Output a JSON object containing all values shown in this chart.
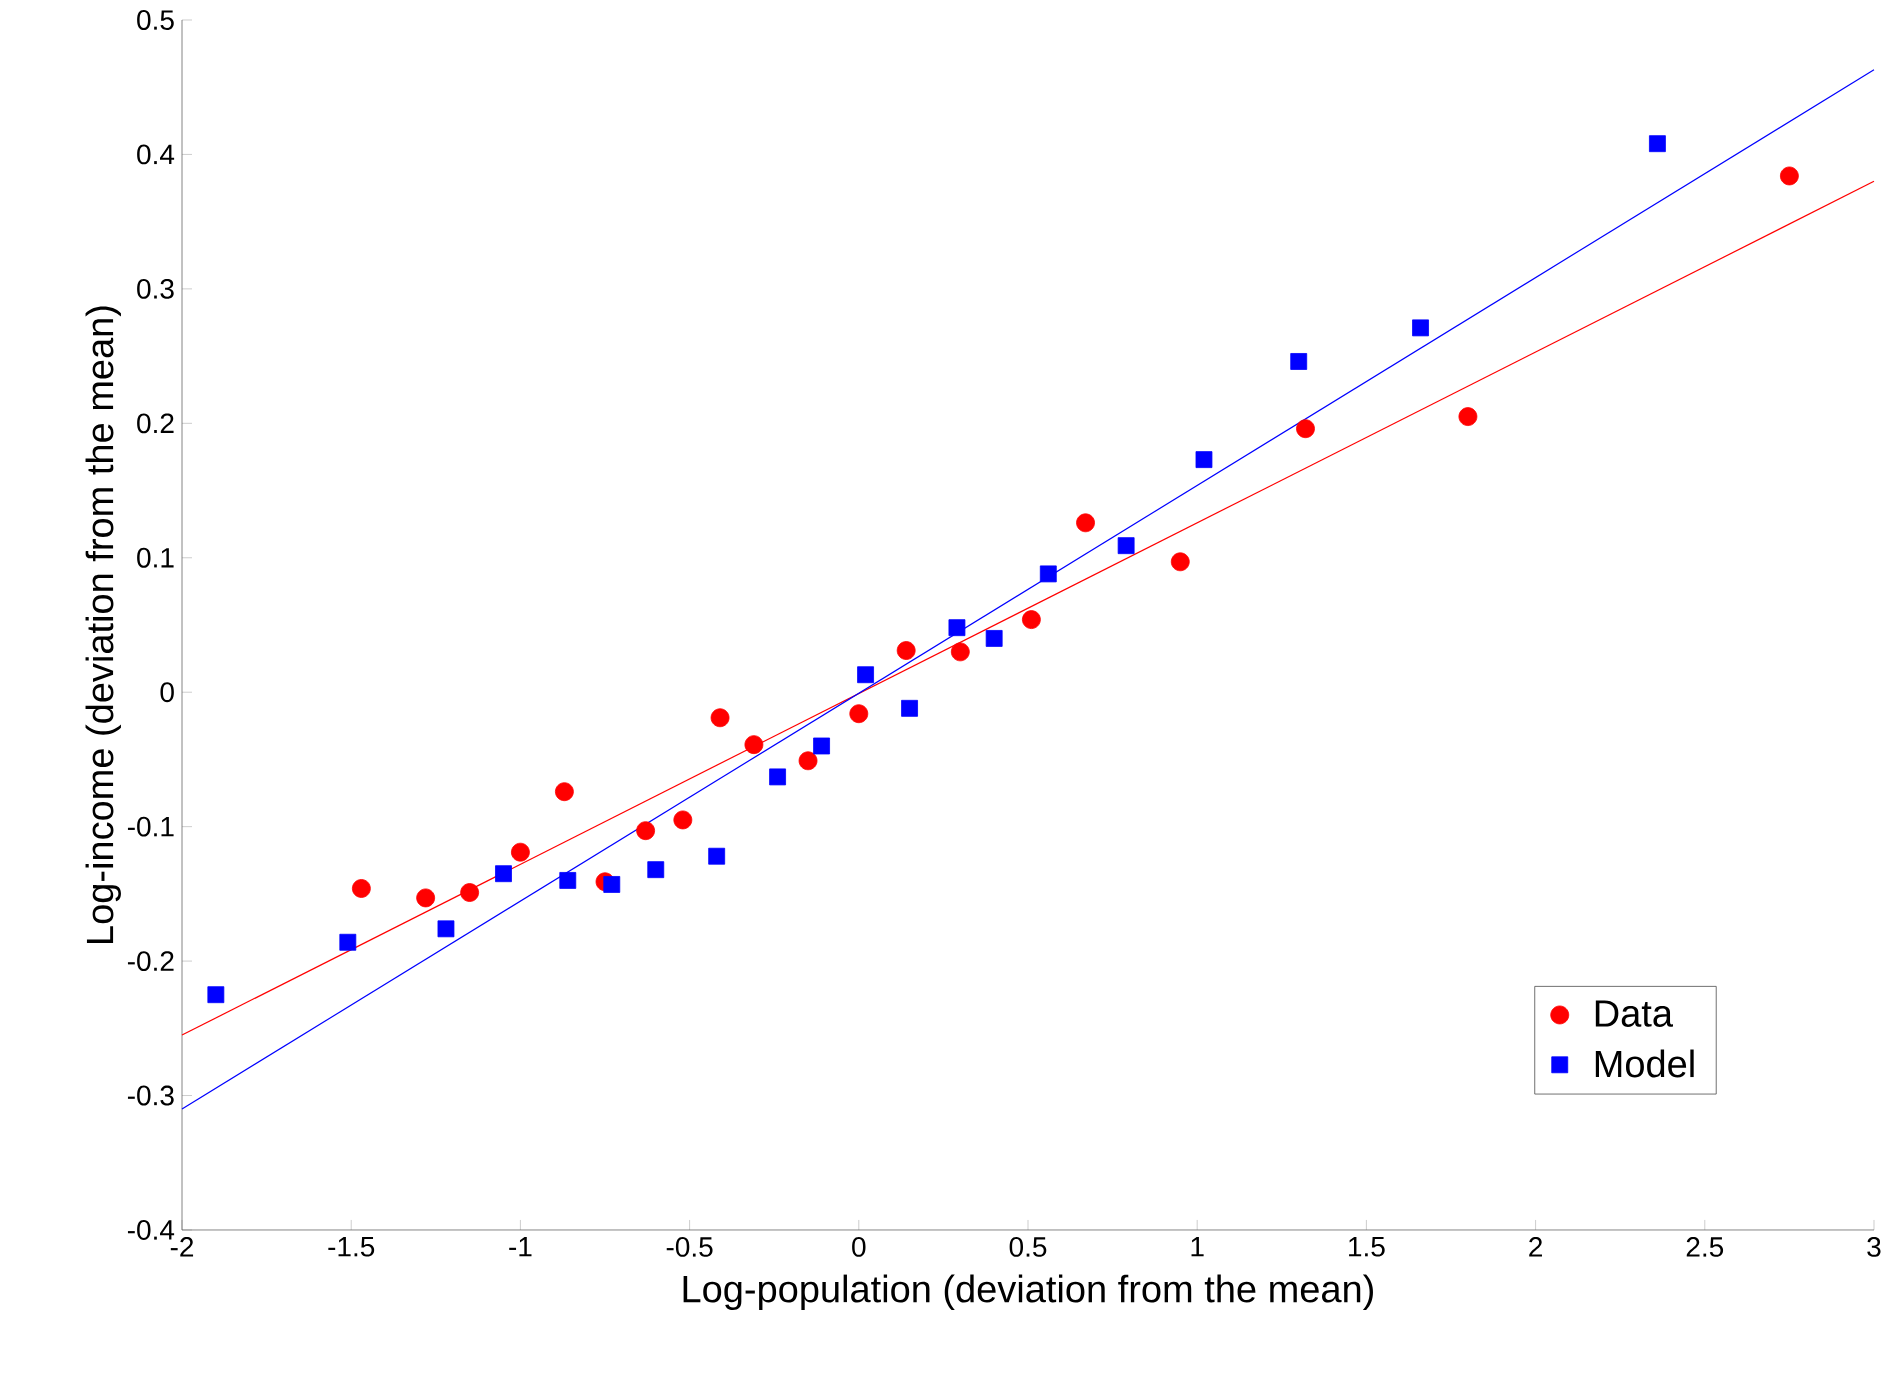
{
  "chart_data": {
    "type": "scatter",
    "xlabel": "Log-population (deviation from the mean)",
    "ylabel": "Log-income (deviation from the mean)",
    "xlim": [
      -2,
      3
    ],
    "ylim": [
      -0.4,
      0.5
    ],
    "xticks": [
      -2,
      -1.5,
      -1,
      -0.5,
      0,
      0.5,
      1,
      1.5,
      2,
      2.5,
      3
    ],
    "yticks": [
      -0.4,
      -0.3,
      -0.2,
      -0.1,
      0,
      0.1,
      0.2,
      0.3,
      0.4,
      0.5
    ],
    "grid": false,
    "legend": "bottom right",
    "series": [
      {
        "name": "Data",
        "marker": "circle",
        "color": "#ff0000",
        "x": [
          -1.47,
          -1.28,
          -1.15,
          -1.0,
          -0.87,
          -0.75,
          -0.63,
          -0.52,
          -0.41,
          -0.31,
          -0.15,
          0.0,
          0.14,
          0.3,
          0.51,
          0.67,
          0.95,
          1.32,
          1.8,
          2.75
        ],
        "values": [
          -0.146,
          -0.153,
          -0.149,
          -0.119,
          -0.074,
          -0.141,
          -0.103,
          -0.095,
          -0.019,
          -0.039,
          -0.051,
          -0.016,
          0.031,
          0.03,
          0.054,
          0.126,
          0.097,
          0.196,
          0.205,
          0.384
        ]
      },
      {
        "name": "Model",
        "marker": "square",
        "color": "#0000ff",
        "x": [
          -1.9,
          -1.51,
          -1.22,
          -1.05,
          -0.86,
          -0.73,
          -0.6,
          -0.42,
          -0.24,
          -0.11,
          0.02,
          0.15,
          0.29,
          0.4,
          0.56,
          0.79,
          1.02,
          1.3,
          1.66,
          2.36
        ],
        "values": [
          -0.225,
          -0.186,
          -0.176,
          -0.135,
          -0.14,
          -0.143,
          -0.132,
          -0.122,
          -0.063,
          -0.04,
          0.013,
          -0.012,
          0.048,
          0.04,
          0.088,
          0.109,
          0.173,
          0.246,
          0.271,
          0.408
        ]
      },
      {
        "type": "line",
        "color": "#ff0000",
        "x": [
          -2,
          3
        ],
        "values": [
          -0.255,
          0.38
        ]
      },
      {
        "type": "line",
        "color": "#0000ff",
        "x": [
          -2,
          3
        ],
        "values": [
          -0.31,
          0.463
        ]
      }
    ]
  }
}
